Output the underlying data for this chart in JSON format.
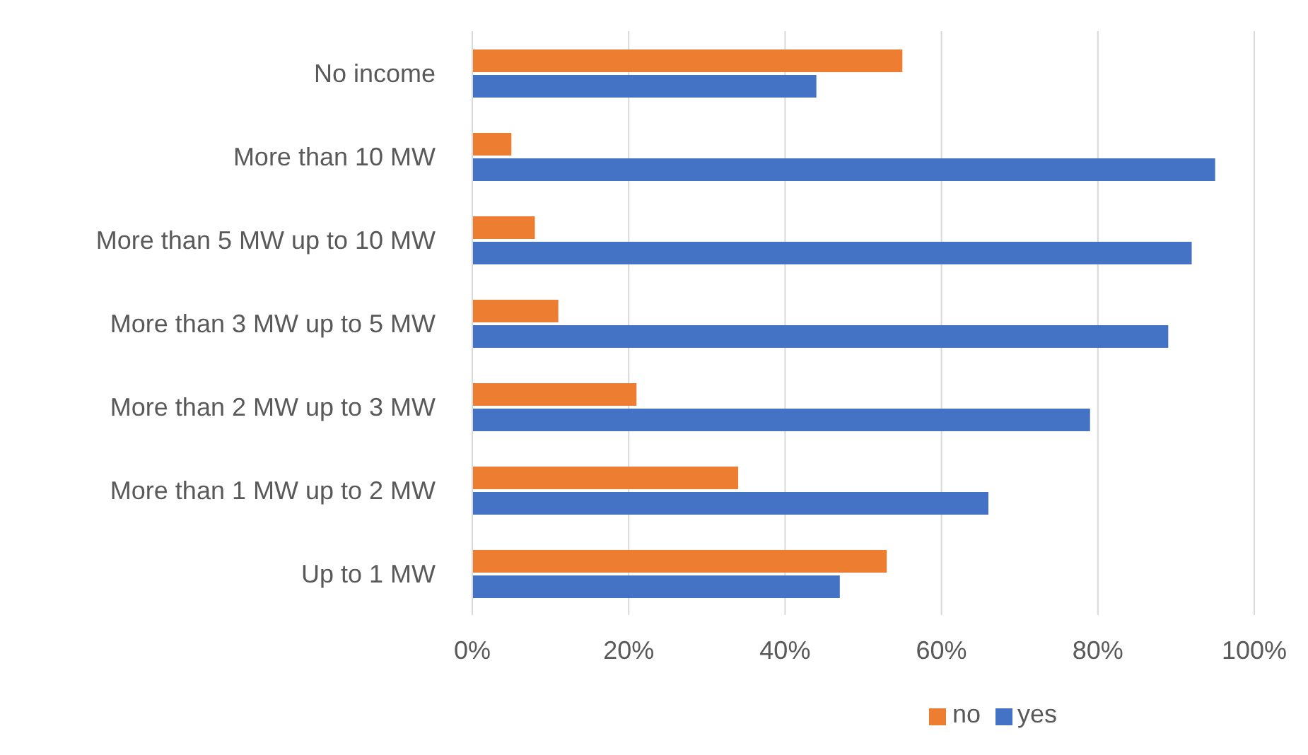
{
  "chart_data": {
    "type": "bar",
    "orientation": "horizontal",
    "categories": [
      "No income",
      "More than 10 MW",
      "More than 5 MW up to 10 MW",
      "More than 3 MW up to 5 MW",
      "More than 2 MW up to 3 MW",
      "More than 1 MW up to 2 MW",
      "Up to 1 MW"
    ],
    "series": [
      {
        "name": "no",
        "color": "#ed7d31",
        "values": [
          55,
          5,
          8,
          11,
          21,
          34,
          53
        ]
      },
      {
        "name": "yes",
        "color": "#4472c4",
        "values": [
          44,
          95,
          92,
          89,
          79,
          66,
          47
        ]
      }
    ],
    "xlim": [
      0,
      100
    ],
    "xticks": [
      {
        "value": 0,
        "label": "0%"
      },
      {
        "value": 20,
        "label": "20%"
      },
      {
        "value": 40,
        "label": "40%"
      },
      {
        "value": 60,
        "label": "60%"
      },
      {
        "value": 80,
        "label": "80%"
      },
      {
        "value": 100,
        "label": "100%"
      }
    ],
    "grid": "x",
    "legend": "bottom"
  }
}
